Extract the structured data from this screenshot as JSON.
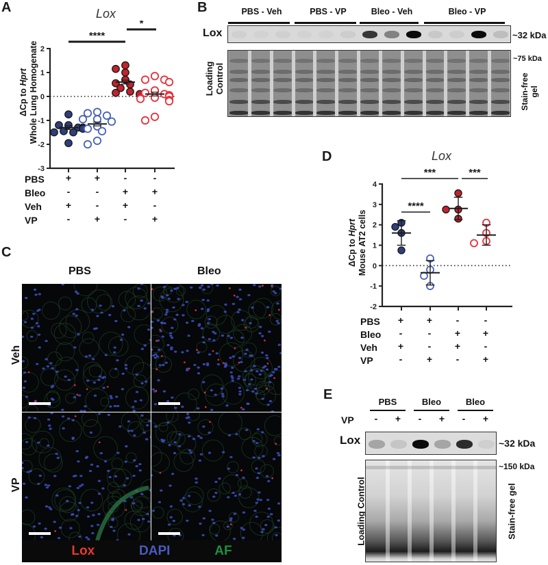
{
  "panels": {
    "A": {
      "letter": "A",
      "title": "Lox",
      "ylabel_line1_prefix": "ΔCp to ",
      "ylabel_line1_gene": "Hprt",
      "ylabel_line2": "Whole Lung Homogenate",
      "sig_long": "****",
      "sig_short": "*",
      "row_labels": [
        "PBS",
        "Bleo",
        "Veh",
        "VP"
      ],
      "conditions": [
        [
          "+",
          "+",
          "-",
          "-"
        ],
        [
          "-",
          "-",
          "+",
          "+"
        ],
        [
          "+",
          "-",
          "+",
          "-"
        ],
        [
          "-",
          "+",
          "-",
          "+"
        ]
      ]
    },
    "B": {
      "letter": "B",
      "groups": [
        "PBS - Veh",
        "PBS - VP",
        "Bleo - Veh",
        "Bleo - VP"
      ],
      "blot_label": "Lox",
      "blot_kda": "~32 kDa",
      "loading_label_1": "Loading",
      "loading_label_2": "Control",
      "loading_kda": "~75 kDa",
      "gel_label_1": "Stain-free",
      "gel_label_2": "gel"
    },
    "C": {
      "letter": "C",
      "col_labels": [
        "PBS",
        "Bleo"
      ],
      "row_labels": [
        "Veh",
        "VP"
      ],
      "legend": [
        {
          "label": "Lox",
          "color": "#e53a2e"
        },
        {
          "label": "DAPI",
          "color": "#4a5bbf"
        },
        {
          "label": "AF",
          "color": "#1f8f3f"
        }
      ]
    },
    "D": {
      "letter": "D",
      "title": "Lox",
      "ylabel_line1_prefix": "ΔCp to ",
      "ylabel_line1_gene": "Hprt",
      "ylabel_line2": "Mouse AT2 cells",
      "sig_1": "****",
      "sig_2": "***",
      "sig_3": "***",
      "row_labels": [
        "PBS",
        "Bleo",
        "Veh",
        "VP"
      ],
      "conditions": [
        [
          "+",
          "+",
          "-",
          "-"
        ],
        [
          "-",
          "-",
          "+",
          "+"
        ],
        [
          "+",
          "-",
          "+",
          "-"
        ],
        [
          "-",
          "+",
          "-",
          "+"
        ]
      ]
    },
    "E": {
      "letter": "E",
      "groups": [
        "PBS",
        "Bleo",
        "Bleo"
      ],
      "vp_label": "VP",
      "vp_signs": [
        "-",
        "+",
        "-",
        "+",
        "-",
        "+"
      ],
      "blot_label": "Lox",
      "blot_kda": "~32 kDa",
      "loading_label": "Loading Control",
      "loading_kda": "~150 kDa",
      "gel_label": "Stain-free gel"
    }
  },
  "colors": {
    "pbs_veh": "#2e3f7f",
    "pbs_vp": "#4a62b8",
    "bleo_veh": "#c4222c",
    "bleo_vp": "#e8303a"
  },
  "chart_data": [
    {
      "type": "scatter",
      "title": "Lox",
      "ylabel": "ΔCp to Hprt Whole Lung Homogenate",
      "ylim": [
        -3,
        2
      ],
      "yticks": [
        2,
        1,
        0,
        -1,
        -2,
        -3
      ],
      "categories": [
        "PBS+Veh",
        "PBS+VP",
        "Bleo+Veh",
        "Bleo+VP"
      ],
      "reference_line": 0,
      "series": [
        {
          "name": "PBS+Veh",
          "filled": true,
          "color": "#2e3f7f",
          "mean": -1.3,
          "values": [
            -0.75,
            -1.2,
            -1.2,
            -1.3,
            -1.3,
            -1.35,
            -1.45,
            -1.5,
            -1.5,
            -1.95
          ]
        },
        {
          "name": "PBS+VP",
          "filled": false,
          "color": "#4a62b8",
          "mean": -1.15,
          "values": [
            -0.65,
            -0.7,
            -0.8,
            -0.95,
            -0.95,
            -1.05,
            -1.25,
            -1.35,
            -1.45,
            -1.85,
            -2.0
          ]
        },
        {
          "name": "Bleo+Veh",
          "filled": true,
          "color": "#c4222c",
          "mean": 0.6,
          "values": [
            1.3,
            1.15,
            1.0,
            0.7,
            0.55,
            0.5,
            0.35,
            0.2,
            0.15,
            0.1
          ]
        },
        {
          "name": "Bleo+VP",
          "filled": false,
          "color": "#e8303a",
          "mean": 0.1,
          "values": [
            0.85,
            0.7,
            0.7,
            0.6,
            0.25,
            0.15,
            0.1,
            0.05,
            0.0,
            0.0,
            -0.05,
            -0.1,
            -0.15,
            -0.2,
            -0.85,
            -1.0
          ]
        }
      ],
      "annotations": [
        {
          "text": "****",
          "from": "PBS+Veh",
          "to": "Bleo+Veh"
        },
        {
          "text": "*",
          "from": "Bleo+Veh",
          "to": "Bleo+VP"
        }
      ]
    },
    {
      "type": "scatter",
      "title": "Lox",
      "ylabel": "ΔCp to Hprt Mouse AT2 cells",
      "ylim": [
        -2,
        4
      ],
      "yticks": [
        4,
        3,
        2,
        1,
        0,
        -1,
        -2
      ],
      "categories": [
        "PBS+Veh",
        "PBS+VP",
        "Bleo+Veh",
        "Bleo+VP"
      ],
      "reference_line": 0,
      "series": [
        {
          "name": "PBS+Veh",
          "filled": true,
          "color": "#2e3f7f",
          "mean": 1.6,
          "sd": 0.6,
          "values": [
            2.1,
            1.9,
            1.6,
            0.75
          ]
        },
        {
          "name": "PBS+VP",
          "filled": false,
          "color": "#4a62b8",
          "mean": -0.35,
          "sd": 0.6,
          "values": [
            0.35,
            -0.2,
            -0.5,
            -1.0
          ]
        },
        {
          "name": "Bleo+Veh",
          "filled": true,
          "color": "#c4222c",
          "mean": 2.8,
          "sd": 0.55,
          "values": [
            3.55,
            2.75,
            2.75,
            2.3
          ]
        },
        {
          "name": "Bleo+VP",
          "filled": false,
          "color": "#e8303a",
          "mean": 1.5,
          "sd": 0.5,
          "values": [
            2.1,
            1.6,
            1.2,
            1.1
          ]
        }
      ],
      "annotations": [
        {
          "text": "****",
          "from": "PBS+Veh",
          "to": "PBS+VP"
        },
        {
          "text": "***",
          "from": "PBS+Veh",
          "to": "Bleo+Veh"
        },
        {
          "text": "***",
          "from": "Bleo+Veh",
          "to": "Bleo+VP"
        }
      ]
    }
  ]
}
